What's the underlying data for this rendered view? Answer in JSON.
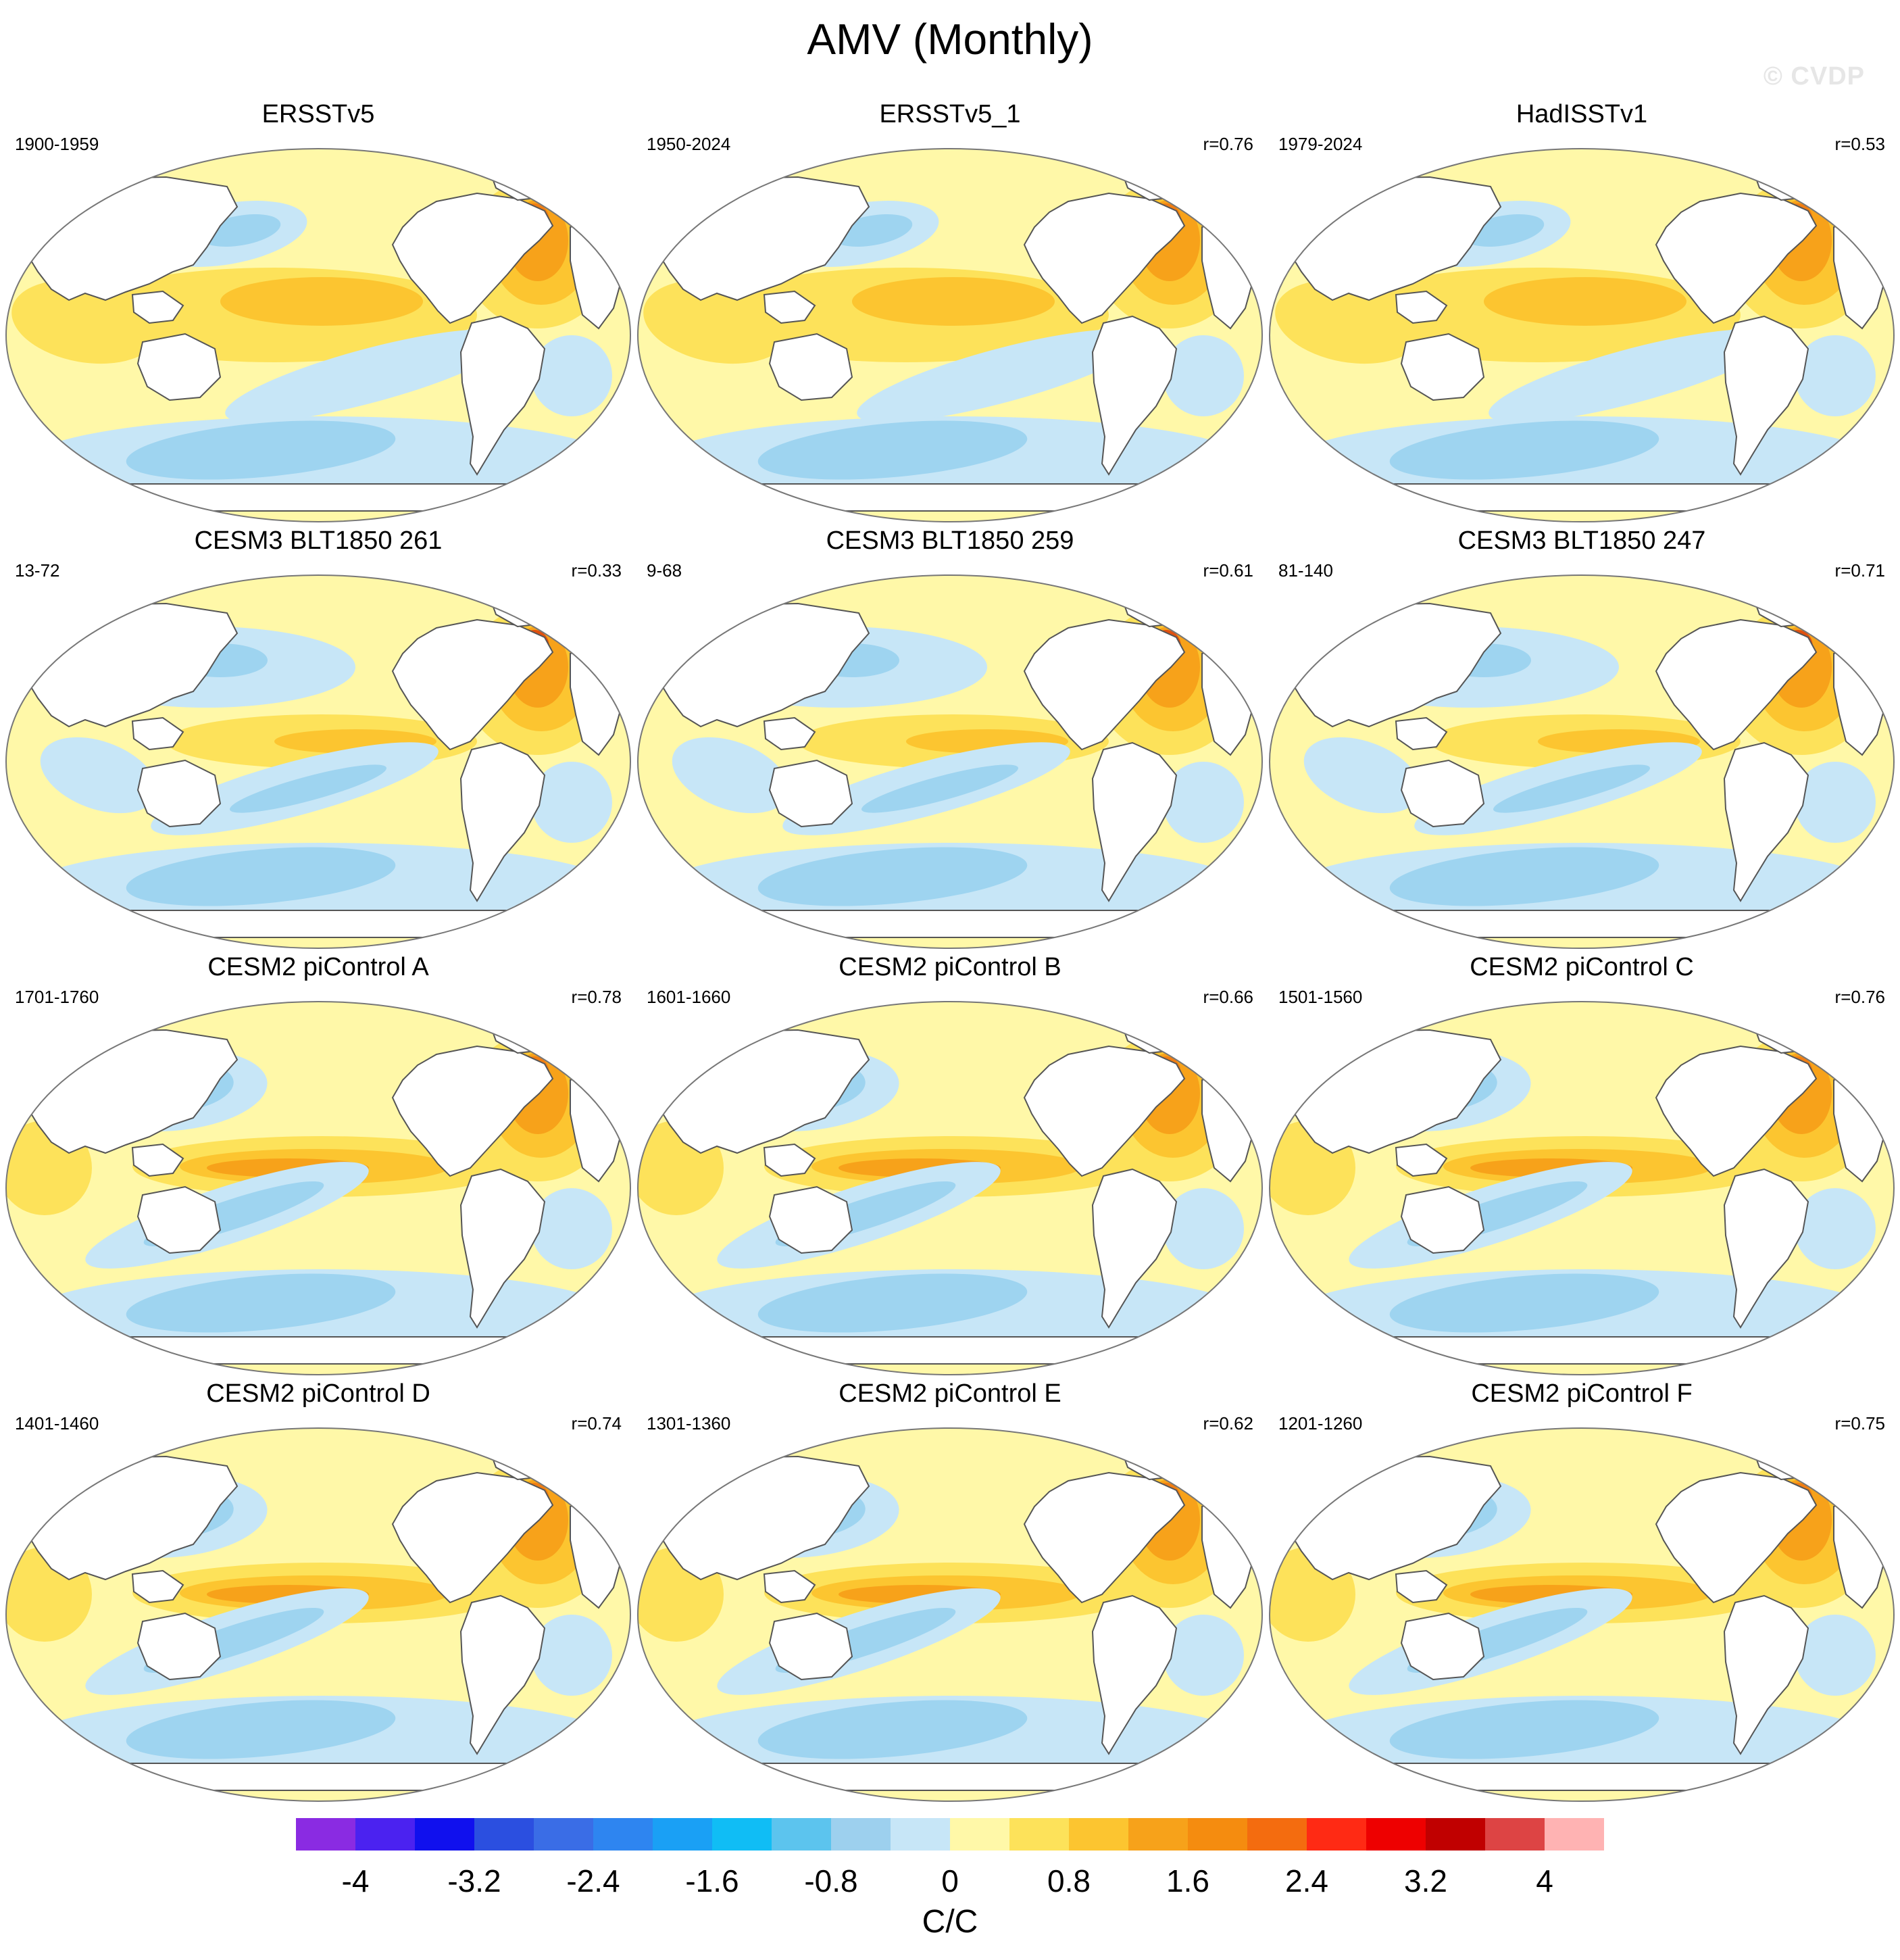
{
  "title": "AMV (Monthly)",
  "watermark": "© CVDP",
  "colors": {
    "pos_light": "#fff8a8",
    "pos_mid": "#fde25a",
    "pos_strong": "#fcc530",
    "pos_stronger": "#f7a21a",
    "pos_strongest": "#f07d12",
    "pos_max": "#e05010",
    "neg_light": "#c7e6f7",
    "neg_mid": "#9ed4f0",
    "neg_strong": "#5cb8ee",
    "neg_stronger": "#2a8cf0",
    "land": "#ffffff"
  },
  "panels": [
    {
      "title": "ERSSTv5",
      "period": "1900-1959",
      "r": ""
    },
    {
      "title": "ERSSTv5_1",
      "period": "1950-2024",
      "r": "r=0.76"
    },
    {
      "title": "HadISSTv1",
      "period": "1979-2024",
      "r": "r=0.53"
    },
    {
      "title": "CESM3 BLT1850 261",
      "period": "13-72",
      "r": "r=0.33"
    },
    {
      "title": "CESM3 BLT1850 259",
      "period": "9-68",
      "r": "r=0.61"
    },
    {
      "title": "CESM3 BLT1850 247",
      "period": "81-140",
      "r": "r=0.71"
    },
    {
      "title": "CESM2 piControl A",
      "period": "1701-1760",
      "r": "r=0.78"
    },
    {
      "title": "CESM2 piControl B",
      "period": "1601-1660",
      "r": "r=0.66"
    },
    {
      "title": "CESM2 piControl C",
      "period": "1501-1560",
      "r": "r=0.76"
    },
    {
      "title": "CESM2 piControl D",
      "period": "1401-1460",
      "r": "r=0.74"
    },
    {
      "title": "CESM2 piControl E",
      "period": "1301-1360",
      "r": "r=0.62"
    },
    {
      "title": "CESM2 piControl F",
      "period": "1201-1260",
      "r": "r=0.75"
    }
  ],
  "colorbar": {
    "units": "C/C",
    "colors": [
      "#8a2be2",
      "#4b22f0",
      "#1010ee",
      "#2b4fe0",
      "#3a6de6",
      "#2e85f0",
      "#1aa0f5",
      "#10bdf5",
      "#5cc4ee",
      "#9dd0ee",
      "#c7e6f7",
      "#fff8a8",
      "#fde25a",
      "#fcc530",
      "#f7a21a",
      "#f58c0f",
      "#f46c0f",
      "#ff2a14",
      "#ee0000",
      "#c00000",
      "#dd4444",
      "#ffb3b3"
    ],
    "tick_labels": [
      "-4",
      "-3.2",
      "-2.4",
      "-1.6",
      "-0.8",
      "0",
      "0.8",
      "1.6",
      "2.4",
      "3.2",
      "4"
    ]
  }
}
